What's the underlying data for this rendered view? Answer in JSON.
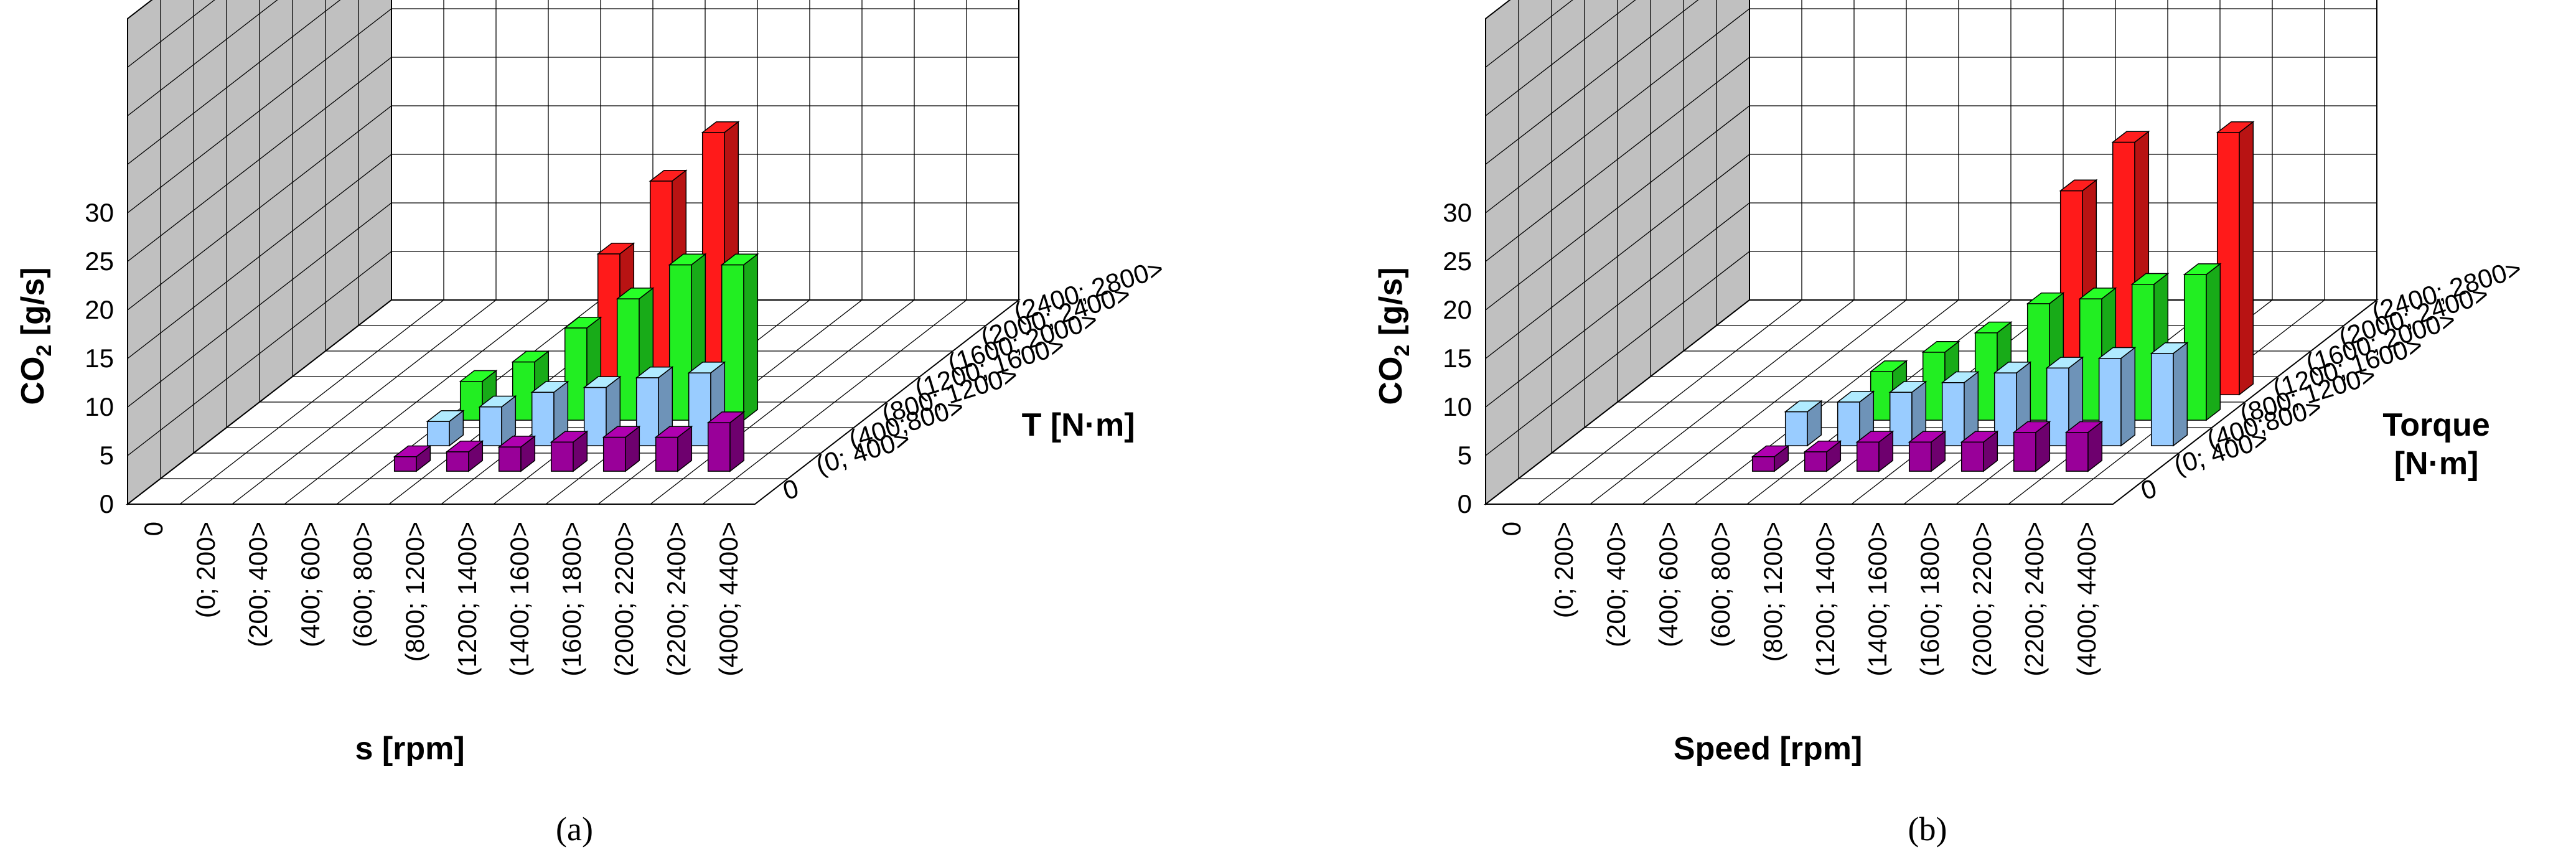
{
  "colors": {
    "red": "#ff1a1a",
    "green": "#22ee22",
    "lightblue": "#99ccff",
    "purple": "#990099",
    "wall": "#c0c0c0",
    "grid": "#000000"
  },
  "chart_data": [
    {
      "type": "bar",
      "subtype": "3d-bar",
      "panel_label": "(a)",
      "zlabel_main": "CO",
      "zlabel_sub": "2",
      "zlabel_unit": " [g/s]",
      "xlabel": "s [rpm]",
      "ylabel": "T [N·m]",
      "ylabel_lines": [
        "T [N·m]"
      ],
      "zlim": [
        0,
        30
      ],
      "zticks": [
        "0",
        "5",
        "10",
        "15",
        "20",
        "25",
        "30"
      ],
      "x_categories": [
        "0",
        "(0; 200>",
        "(200; 400>",
        "(400; 600>",
        "(600; 800>",
        "(800; 1200>",
        "(1200; 1400>",
        "(1400; 1600>",
        "(1600; 1800>",
        "(2000; 2200>",
        "(2200; 2400>",
        "(4000; 4400>"
      ],
      "y_categories": [
        "0",
        "(0; 400>",
        "(400;800>",
        "(800; 1200>",
        "(1200; 1600>",
        "(1600; 2000>",
        "(2000; 2400>",
        "(2400; 2800>"
      ],
      "grid": true,
      "series": [
        {
          "name": "(0; 400>",
          "color": "purple",
          "y_index": 1,
          "x_indices": [
            4,
            5,
            6,
            7,
            8,
            9,
            10
          ],
          "values": [
            1.5,
            2,
            2.5,
            3,
            3.5,
            3.5,
            5
          ]
        },
        {
          "name": "(400;800>",
          "color": "lightblue",
          "y_index": 2,
          "x_indices": [
            4,
            5,
            6,
            7,
            8,
            9
          ],
          "values": [
            2.5,
            4,
            5.5,
            6,
            7,
            7.5
          ]
        },
        {
          "name": "(800; 1200>",
          "color": "green",
          "y_index": 3,
          "x_indices": [
            4,
            5,
            6,
            7,
            8,
            9
          ],
          "values": [
            4,
            6,
            9.5,
            12.5,
            16,
            16
          ]
        },
        {
          "name": "(1200; 1600>",
          "color": "red",
          "y_index": 4,
          "x_indices": [
            6,
            7,
            8
          ],
          "values": [
            14.5,
            22,
            27
          ]
        }
      ]
    },
    {
      "type": "bar",
      "subtype": "3d-bar",
      "panel_label": "(b)",
      "zlabel_main": "CO",
      "zlabel_sub": "2",
      "zlabel_unit": " [g/s]",
      "xlabel": "Speed [rpm]",
      "ylabel": "Torque [N·m]",
      "ylabel_lines": [
        "Torque",
        "[N·m]"
      ],
      "zlim": [
        0,
        30
      ],
      "zticks": [
        "0",
        "5",
        "10",
        "15",
        "20",
        "25",
        "30"
      ],
      "x_categories": [
        "0",
        "(0; 200>",
        "(200; 400>",
        "(400; 600>",
        "(600; 800>",
        "(800; 1200>",
        "(1200; 1400>",
        "(1400; 1600>",
        "(1600; 1800>",
        "(2000; 2200>",
        "(2200; 2400>",
        "(4000; 4400>"
      ],
      "y_categories": [
        "0",
        "(0; 400>",
        "(400;800>",
        "(800; 1200>",
        "(1200; 1600>",
        "(1600; 2000>",
        "(2000; 2400>",
        "(2400; 2800>"
      ],
      "grid": true,
      "series": [
        {
          "name": "(0; 400>",
          "color": "purple",
          "y_index": 1,
          "x_indices": [
            4,
            5,
            6,
            7,
            8,
            9,
            10
          ],
          "values": [
            1.5,
            2,
            3,
            3,
            3,
            4,
            4
          ]
        },
        {
          "name": "(400;800>",
          "color": "lightblue",
          "y_index": 2,
          "x_indices": [
            4,
            5,
            6,
            7,
            8,
            9,
            10,
            11
          ],
          "values": [
            3.5,
            4.5,
            5.5,
            6.5,
            7.5,
            8,
            9,
            9.5
          ]
        },
        {
          "name": "(800; 1200>",
          "color": "green",
          "y_index": 3,
          "x_indices": [
            5,
            6,
            7,
            8,
            9,
            10,
            11
          ],
          "values": [
            5,
            7,
            9,
            12,
            12.5,
            14,
            15
          ]
        },
        {
          "name": "(1200; 1600>",
          "color": "red",
          "y_index": 4,
          "x_indices": [
            8,
            9,
            11
          ],
          "values": [
            21,
            26,
            27
          ]
        }
      ]
    }
  ]
}
